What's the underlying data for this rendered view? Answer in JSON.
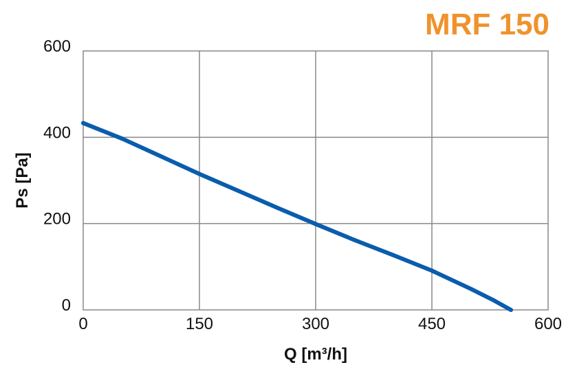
{
  "chart_data": {
    "type": "line",
    "title": "MRF 150",
    "xlabel": "Q [m³/h]",
    "ylabel": "Ps [Pa]",
    "xlim": [
      0,
      600
    ],
    "ylim": [
      0,
      600
    ],
    "x_ticks": [
      0,
      150,
      300,
      450,
      600
    ],
    "y_ticks": [
      0,
      200,
      400,
      600
    ],
    "x_tick_labels": [
      "0",
      "150",
      "300",
      "450",
      "600"
    ],
    "y_tick_labels": [
      "0",
      "200",
      "400",
      "600"
    ],
    "grid": true,
    "series": [
      {
        "color": "#0a5cad",
        "x": [
          0,
          50,
          100,
          150,
          200,
          250,
          300,
          350,
          400,
          450,
          500,
          530,
          552
        ],
        "y": [
          433,
          397,
          356,
          315,
          276,
          237,
          199,
          162,
          127,
          91,
          49,
          22,
          0
        ]
      }
    ]
  }
}
